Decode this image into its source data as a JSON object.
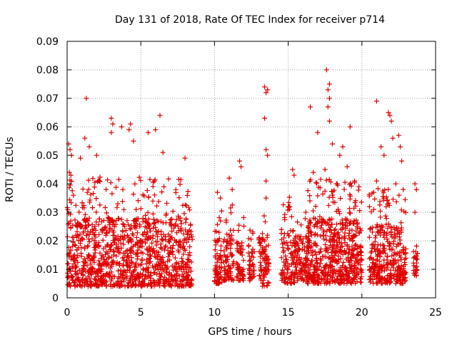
{
  "chart_data": {
    "type": "scatter",
    "title": "Day 131 of 2018, Rate Of TEC Index for receiver p714",
    "xlabel": "GPS time / hours",
    "ylabel": "ROTI / TECUs",
    "xlim": [
      0,
      25
    ],
    "ylim": [
      0,
      0.09
    ],
    "x_ticks": [
      0,
      5,
      10,
      15,
      20,
      25
    ],
    "y_ticks": [
      0,
      0.01,
      0.02,
      0.03,
      0.04,
      0.05,
      0.06,
      0.07,
      0.08,
      0.09
    ],
    "x_tick_labels": [
      "0",
      "5",
      "10",
      "15",
      "20",
      "25"
    ],
    "y_tick_labels": [
      "0",
      "0.01",
      "0.02",
      "0.03",
      "0.04",
      "0.05",
      "0.06",
      "0.07",
      "0.08",
      "0.09"
    ],
    "grid": true,
    "marker": "+",
    "colors": {
      "marker": "#e00000",
      "grid": "#a0a0a0",
      "axis": "#000000"
    },
    "series": [
      {
        "name": "ROTI",
        "segments": [
          {
            "x_range": [
              0.0,
              8.5
            ],
            "y_core": [
              0.004,
              0.028
            ],
            "n": 1150
          },
          {
            "x_range": [
              10.0,
              10.5
            ],
            "y_core": [
              0.005,
              0.022
            ],
            "n": 70
          },
          {
            "x_range": [
              10.6,
              11.3
            ],
            "y_core": [
              0.006,
              0.024
            ],
            "n": 80
          },
          {
            "x_range": [
              11.5,
              12.0
            ],
            "y_core": [
              0.006,
              0.02
            ],
            "n": 60
          },
          {
            "x_range": [
              12.3,
              12.7
            ],
            "y_core": [
              0.006,
              0.018
            ],
            "n": 45
          },
          {
            "x_range": [
              13.0,
              13.7
            ],
            "y_core": [
              0.004,
              0.022
            ],
            "n": 80
          },
          {
            "x_range": [
              14.5,
              15.5
            ],
            "y_core": [
              0.005,
              0.024
            ],
            "n": 110
          },
          {
            "x_range": [
              15.5,
              16.3
            ],
            "y_core": [
              0.006,
              0.022
            ],
            "n": 90
          },
          {
            "x_range": [
              16.3,
              20.0
            ],
            "y_core": [
              0.005,
              0.028
            ],
            "n": 560
          },
          {
            "x_range": [
              20.5,
              23.0
            ],
            "y_core": [
              0.005,
              0.026
            ],
            "n": 340
          },
          {
            "x_range": [
              23.5,
              23.8
            ],
            "y_core": [
              0.007,
              0.016
            ],
            "n": 25
          }
        ],
        "notable_points": [
          {
            "x": 0.1,
            "y": 0.054
          },
          {
            "x": 0.2,
            "y": 0.052
          },
          {
            "x": 0.3,
            "y": 0.05
          },
          {
            "x": 0.15,
            "y": 0.044
          },
          {
            "x": 0.25,
            "y": 0.043
          },
          {
            "x": 0.9,
            "y": 0.049
          },
          {
            "x": 1.2,
            "y": 0.056
          },
          {
            "x": 1.3,
            "y": 0.07
          },
          {
            "x": 1.5,
            "y": 0.053
          },
          {
            "x": 2.0,
            "y": 0.05
          },
          {
            "x": 3.0,
            "y": 0.063
          },
          {
            "x": 3.1,
            "y": 0.061
          },
          {
            "x": 3.0,
            "y": 0.058
          },
          {
            "x": 3.7,
            "y": 0.06
          },
          {
            "x": 4.2,
            "y": 0.059
          },
          {
            "x": 4.3,
            "y": 0.061
          },
          {
            "x": 4.5,
            "y": 0.055
          },
          {
            "x": 5.5,
            "y": 0.058
          },
          {
            "x": 6.0,
            "y": 0.059
          },
          {
            "x": 6.3,
            "y": 0.064
          },
          {
            "x": 6.5,
            "y": 0.051
          },
          {
            "x": 8.0,
            "y": 0.049
          },
          {
            "x": 10.2,
            "y": 0.037
          },
          {
            "x": 10.4,
            "y": 0.035
          },
          {
            "x": 11.0,
            "y": 0.042
          },
          {
            "x": 11.2,
            "y": 0.038
          },
          {
            "x": 11.7,
            "y": 0.048
          },
          {
            "x": 11.8,
            "y": 0.046
          },
          {
            "x": 13.4,
            "y": 0.074
          },
          {
            "x": 13.5,
            "y": 0.072
          },
          {
            "x": 13.6,
            "y": 0.073
          },
          {
            "x": 13.4,
            "y": 0.063
          },
          {
            "x": 13.5,
            "y": 0.052
          },
          {
            "x": 13.6,
            "y": 0.05
          },
          {
            "x": 13.5,
            "y": 0.041
          },
          {
            "x": 13.5,
            "y": 0.035
          },
          {
            "x": 15.0,
            "y": 0.032
          },
          {
            "x": 15.3,
            "y": 0.045
          },
          {
            "x": 15.4,
            "y": 0.043
          },
          {
            "x": 16.5,
            "y": 0.067
          },
          {
            "x": 16.7,
            "y": 0.044
          },
          {
            "x": 17.0,
            "y": 0.058
          },
          {
            "x": 17.5,
            "y": 0.045
          },
          {
            "x": 17.6,
            "y": 0.08
          },
          {
            "x": 17.8,
            "y": 0.075
          },
          {
            "x": 17.7,
            "y": 0.073
          },
          {
            "x": 17.8,
            "y": 0.07
          },
          {
            "x": 17.7,
            "y": 0.067
          },
          {
            "x": 17.8,
            "y": 0.062
          },
          {
            "x": 18.0,
            "y": 0.054
          },
          {
            "x": 18.5,
            "y": 0.05
          },
          {
            "x": 18.7,
            "y": 0.053
          },
          {
            "x": 19.0,
            "y": 0.046
          },
          {
            "x": 19.2,
            "y": 0.06
          },
          {
            "x": 19.5,
            "y": 0.041
          },
          {
            "x": 19.8,
            "y": 0.039
          },
          {
            "x": 20.8,
            "y": 0.037
          },
          {
            "x": 21.0,
            "y": 0.069
          },
          {
            "x": 21.3,
            "y": 0.053
          },
          {
            "x": 21.5,
            "y": 0.05
          },
          {
            "x": 21.8,
            "y": 0.065
          },
          {
            "x": 21.9,
            "y": 0.064
          },
          {
            "x": 22.0,
            "y": 0.062
          },
          {
            "x": 22.1,
            "y": 0.056
          },
          {
            "x": 22.3,
            "y": 0.04
          },
          {
            "x": 22.5,
            "y": 0.057
          },
          {
            "x": 22.6,
            "y": 0.053
          },
          {
            "x": 22.7,
            "y": 0.048
          },
          {
            "x": 22.8,
            "y": 0.038
          },
          {
            "x": 23.6,
            "y": 0.04
          },
          {
            "x": 23.7,
            "y": 0.038
          },
          {
            "x": 23.6,
            "y": 0.03
          },
          {
            "x": 21.0,
            "y": 0.041
          },
          {
            "x": 20.8,
            "y": 0.031
          }
        ]
      }
    ]
  }
}
